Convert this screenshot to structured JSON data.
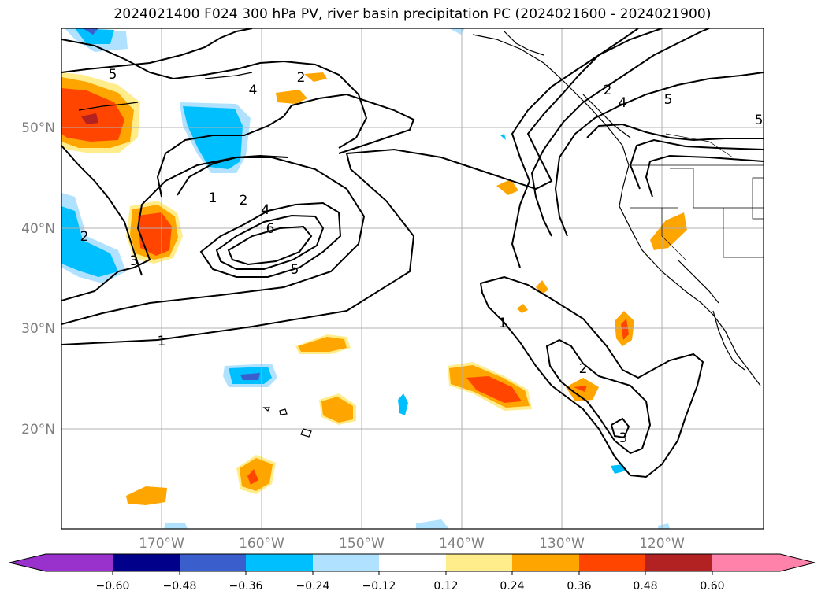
{
  "title": "2024021400 F024 300 hPa PV, river basin precipitation PC (2024021600 - 2024021900)",
  "map": {
    "lat_labels": [
      "50°N",
      "40°N",
      "30°N",
      "20°N"
    ],
    "lon_labels": [
      "170°W",
      "160°W",
      "150°W",
      "140°W",
      "130°W",
      "120°W"
    ],
    "label_color": "#7f7f7f",
    "gridline_color": "#b0b0b0"
  },
  "colorbar": {
    "tick_labels": [
      "−0.60",
      "−0.48",
      "−0.36",
      "−0.24",
      "−0.12",
      "0.12",
      "0.24",
      "0.36",
      "0.48",
      "0.60"
    ],
    "colors": [
      "#9932cc",
      "#00008b",
      "#3a5fcd",
      "#00bfff",
      "#b0e2ff",
      "#ffffff",
      "#ffec8b",
      "#ffa500",
      "#ff4500",
      "#b22222",
      "#ff82ab"
    ]
  },
  "contour_labels": {
    "l1": "1",
    "l2": "2",
    "l3": "3",
    "l4": "4",
    "l5": "5",
    "l6": "6"
  }
}
